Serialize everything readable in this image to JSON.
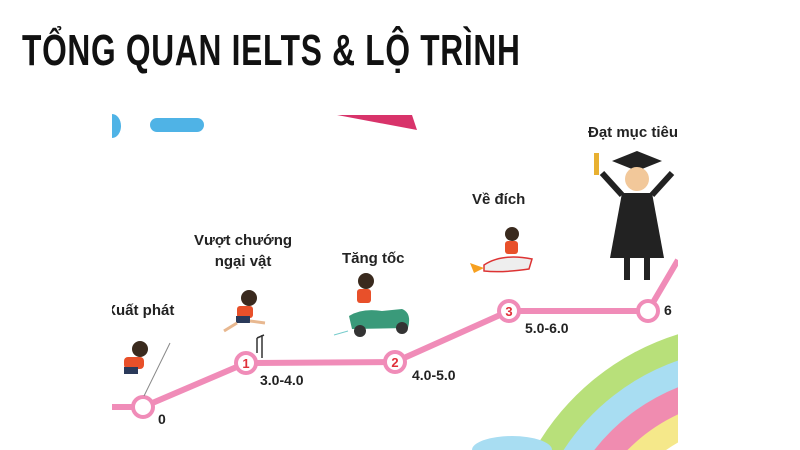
{
  "title": "TỔNG QUAN IELTS & LỘ TRÌNH",
  "colors": {
    "path": "#f08cb8",
    "node_number": "#e0303a",
    "rainbow": [
      "#b8e07a",
      "#a8ddf2",
      "#f08cb0",
      "#f5e88a"
    ]
  },
  "roadmap": {
    "stages": [
      {
        "name": "Xuất phát",
        "score": "0",
        "node": "",
        "icon": "crouching-runner-icon"
      },
      {
        "name_line1": "Vượt chướng",
        "name_line2": "ngại vật",
        "score": "3.0-4.0",
        "node": "1",
        "icon": "hurdler-icon"
      },
      {
        "name": "Tăng tốc",
        "score": "4.0-5.0",
        "node": "2",
        "icon": "scooter-rider-icon"
      },
      {
        "name": "Về đích",
        "score": "5.0-6.0",
        "node": "3",
        "icon": "rocket-rider-icon"
      },
      {
        "name": "Đạt mục tiêu",
        "score": "6",
        "node": "",
        "icon": "graduate-icon"
      }
    ]
  }
}
